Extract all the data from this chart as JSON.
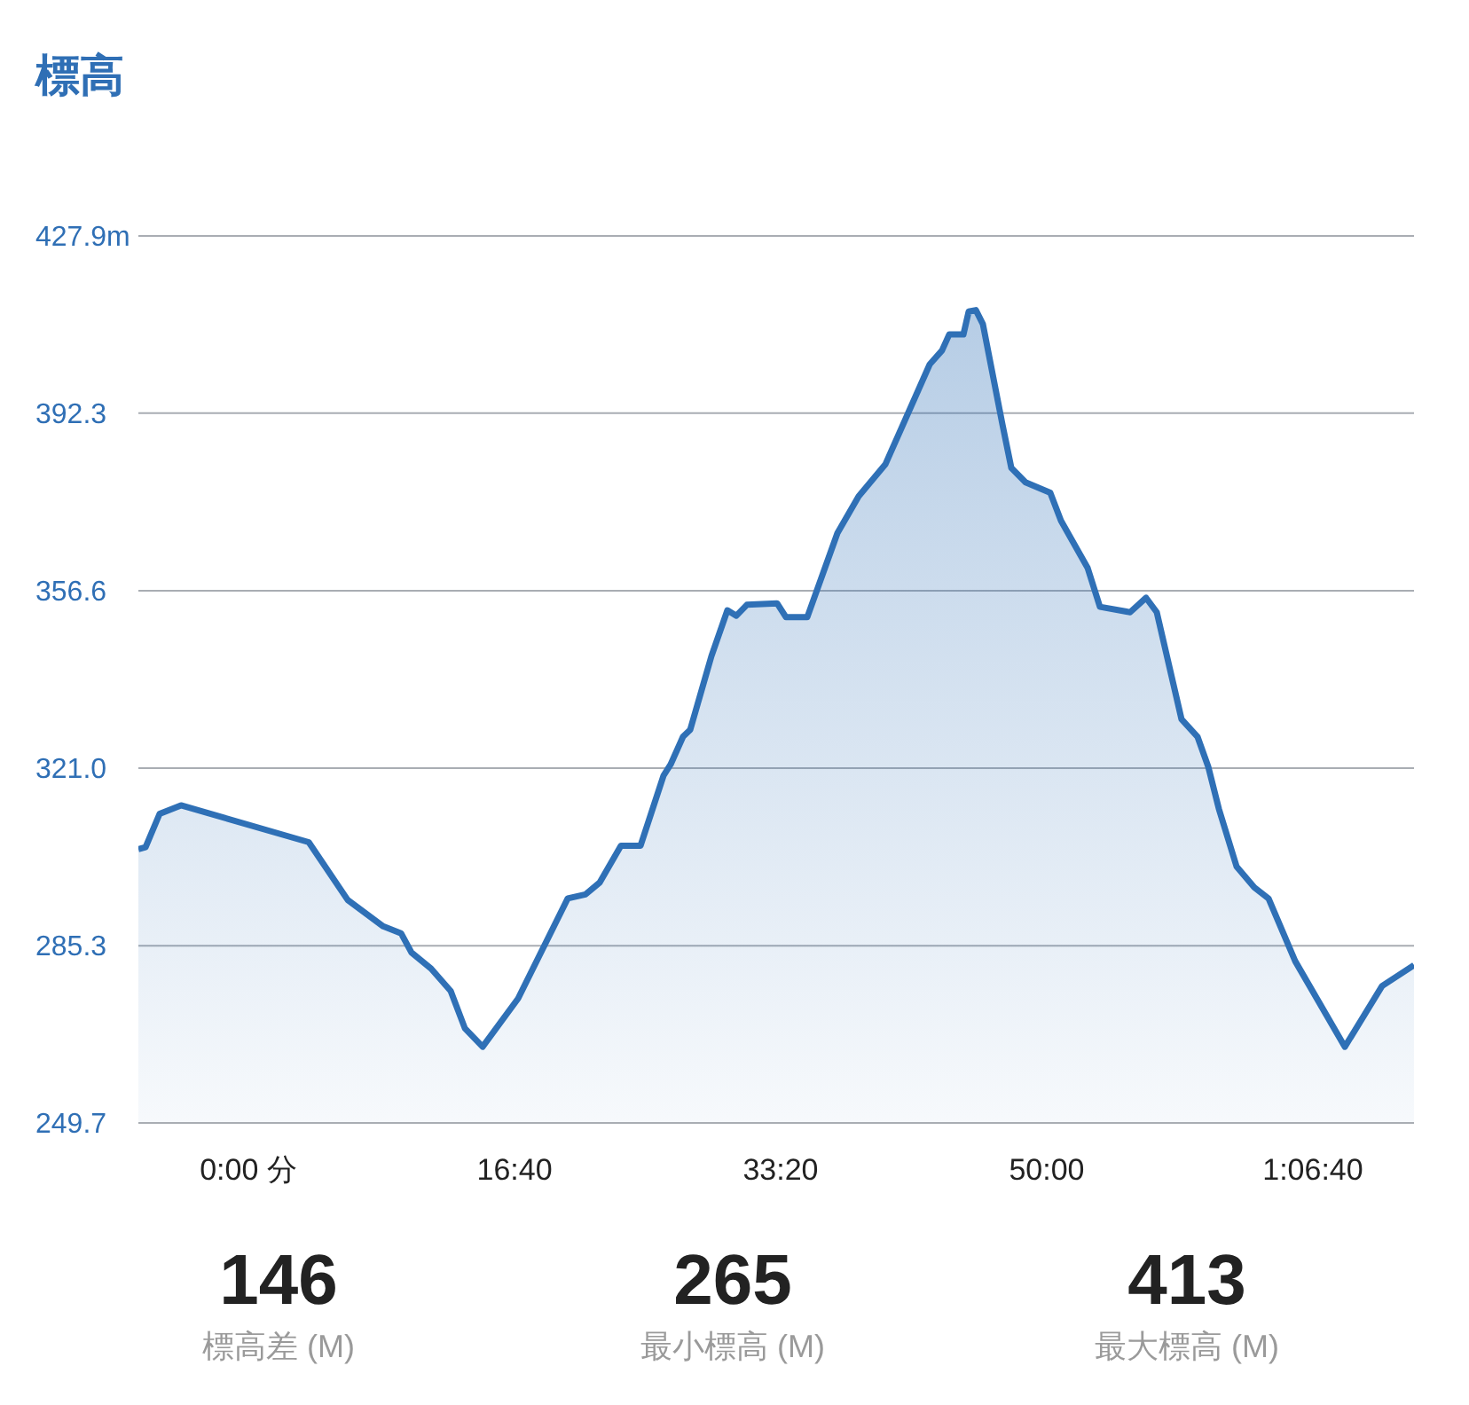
{
  "chart_data": {
    "type": "area",
    "title": "標高",
    "x": [
      -6.89,
      -6.44,
      -5.56,
      -4.22,
      3.78,
      6.22,
      8.44,
      9.56,
      10.22,
      11.44,
      12.67,
      13.56,
      14.67,
      16.89,
      20.0,
      21.11,
      22.0,
      23.33,
      24.56,
      26.0,
      26.44,
      27.22,
      27.67,
      29.0,
      30.0,
      30.56,
      31.22,
      33.11,
      33.67,
      35.0,
      36.89,
      38.22,
      39.89,
      42.67,
      43.44,
      43.89,
      44.78,
      45.11,
      45.56,
      46.0,
      47.22,
      47.78,
      48.67,
      50.22,
      50.89,
      52.56,
      53.33,
      55.22,
      56.22,
      56.89,
      58.44,
      59.44,
      60.11,
      60.78,
      61.89,
      63.0,
      63.89,
      65.56,
      68.67,
      71.0,
      73.0
    ],
    "series": [
      {
        "color": "#2f70b6",
        "values": [
          304.7,
          305.1,
          311.8,
          313.5,
          306.1,
          294.5,
          289.2,
          287.8,
          283.9,
          280.7,
          276.2,
          268.7,
          265,
          274.7,
          294.8,
          295.6,
          298.0,
          305.4,
          305.4,
          319.5,
          321.7,
          327.3,
          328.7,
          343.5,
          352.7,
          351.6,
          353.8,
          354.1,
          351.3,
          351.3,
          368.2,
          375.6,
          382.0,
          402.1,
          404.9,
          408.1,
          408.1,
          412.7,
          413,
          410.2,
          390.1,
          381.3,
          378.4,
          376.3,
          370.7,
          361.2,
          353.4,
          352.3,
          355.2,
          352.3,
          330.8,
          327.3,
          321.3,
          312.8,
          301.2,
          297.0,
          294.8,
          282.2,
          265,
          277.2,
          281.4
        ]
      }
    ],
    "xlim": [
      -6.89,
      73.0
    ],
    "xticks": [
      {
        "value": 0,
        "label": "0:00 分"
      },
      {
        "value": 16.667,
        "label": "16:40"
      },
      {
        "value": 33.333,
        "label": "33:20"
      },
      {
        "value": 50,
        "label": "50:00"
      },
      {
        "value": 66.667,
        "label": "1:06:40"
      }
    ],
    "ylim": [
      249.7,
      427.9
    ],
    "yticks": [
      {
        "value": 249.7,
        "label": "249.7"
      },
      {
        "value": 285.3,
        "label": "285.3"
      },
      {
        "value": 321.0,
        "label": "321.0"
      },
      {
        "value": 356.6,
        "label": "356.6"
      },
      {
        "value": 392.3,
        "label": "392.3"
      },
      {
        "value": 427.9,
        "label": "427.9m"
      }
    ],
    "grid": "y",
    "marker": "none",
    "line_style": "solid",
    "annotations": [
      "146",
      "標高差 (M)",
      "265",
      "最小標高 (M)",
      "413",
      "最大標高 (M)"
    ]
  }
}
